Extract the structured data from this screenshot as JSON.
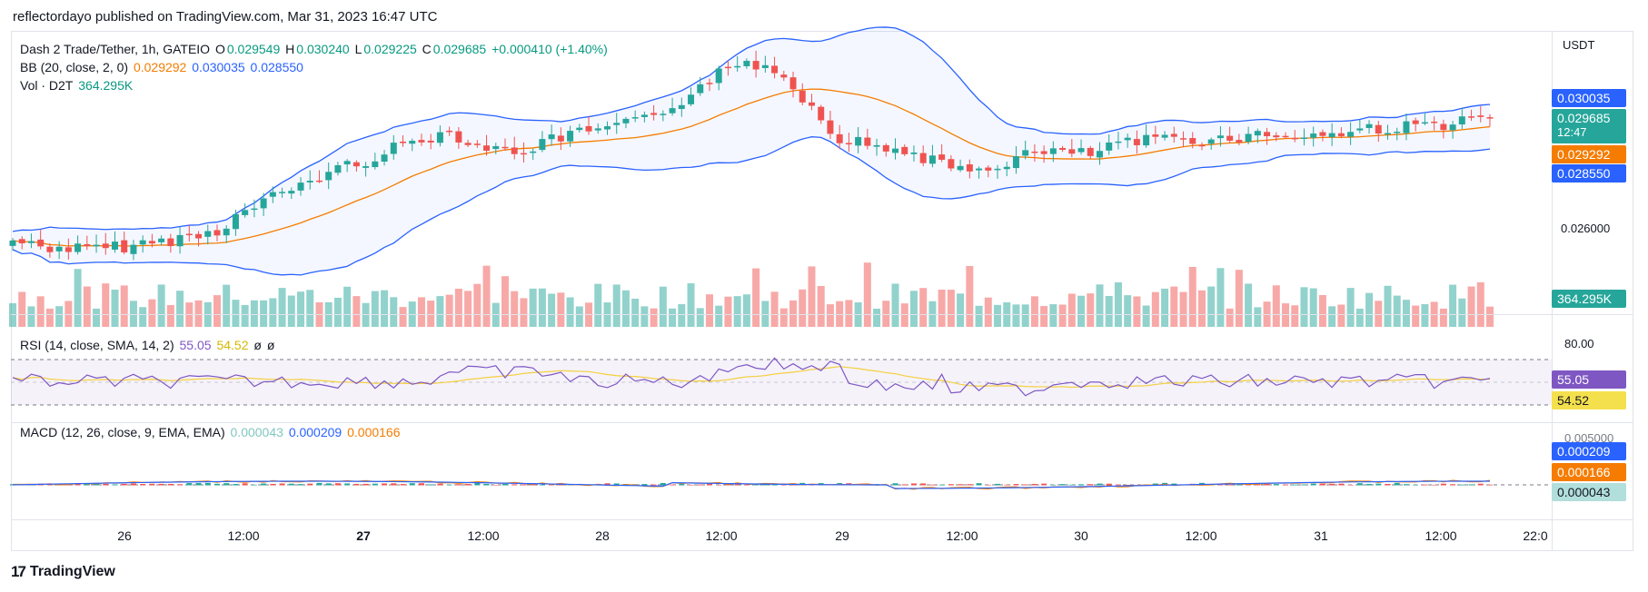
{
  "header": {
    "published": "reflectordayo published on TradingView.com, Mar 31, 2023 16:47 UTC"
  },
  "price_legend": {
    "symbol": "Dash 2 Trade/Tether, 1h, GATEIO",
    "o_label": "O",
    "o": "0.029549",
    "h_label": "H",
    "h": "0.030240",
    "l_label": "L",
    "l": "0.029225",
    "c_label": "C",
    "c": "0.029685",
    "change": "+0.000410 (+1.40%)"
  },
  "bb_legend": {
    "label": "BB (20, close, 2, 0)",
    "basis": "0.029292",
    "upper": "0.030035",
    "lower": "0.028550"
  },
  "vol_legend": {
    "label": "Vol · D2T",
    "value": "364.295K"
  },
  "rsi_legend": {
    "label": "RSI (14, close, SMA, 14, 2)",
    "rsi": "55.05",
    "sma": "54.52",
    "x1": "ø",
    "x2": "ø"
  },
  "macd_legend": {
    "label": "MACD (12, 26, close, 9, EMA, EMA)",
    "hist": "0.000043",
    "macd": "0.000209",
    "signal": "0.000166"
  },
  "price_axis": {
    "currency": "USDT",
    "tick_026": "0.026000",
    "rsi_80": "80.00",
    "macd_top": "0.005000"
  },
  "tags": {
    "upper": "0.030035",
    "last": "0.029685",
    "countdown": "12:47",
    "basis": "0.029292",
    "lower": "0.028550",
    "volume": "364.295K",
    "rsi": "55.05",
    "rsi_sma": "54.52",
    "macd": "0.000209",
    "signal": "0.000166",
    "hist": "0.000043"
  },
  "time_axis": [
    "26",
    "12:00",
    "27",
    "12:00",
    "28",
    "12:00",
    "29",
    "12:00",
    "30",
    "12:00",
    "31",
    "12:00",
    "22:0"
  ],
  "footer": {
    "brand": "TradingView"
  },
  "colors": {
    "up": "#26a69a",
    "down": "#ef5350",
    "bb_band": "#2962ff",
    "bb_basis": "#f57c00",
    "rsi": "#7e57c2",
    "rsi_sma": "#f4d03f"
  },
  "chart_data": {
    "type": "candlestick",
    "title": "Dash 2 Trade/Tether, 1h, GATEIO",
    "ylabel": "USDT",
    "closes": [
      0.025,
      0.0248,
      0.0247,
      0.0249,
      0.0252,
      0.025,
      0.0249,
      0.0251,
      0.0253,
      0.0256,
      0.026,
      0.0258,
      0.0262,
      0.0266,
      0.027,
      0.0275,
      0.0278,
      0.0274,
      0.0276,
      0.0279,
      0.0281,
      0.0283,
      0.0285,
      0.0286,
      0.0288,
      0.029,
      0.0294,
      0.0297,
      0.0302,
      0.0298,
      0.0292,
      0.0289,
      0.0288,
      0.0287,
      0.0286,
      0.0284,
      0.0288,
      0.0287,
      0.0289,
      0.029,
      0.0289,
      0.029,
      0.0291,
      0.0292,
      0.0293,
      0.0294,
      0.0293,
      0.0296,
      0.0297,
      0.0296
    ]
  }
}
